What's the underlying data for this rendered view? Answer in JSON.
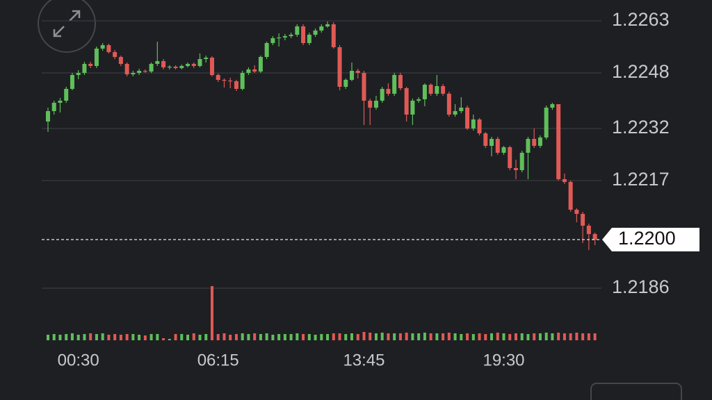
{
  "chart_data": {
    "type": "candlestick",
    "categories": [
      null,
      null,
      null,
      null,
      null,
      "00:30",
      null,
      null,
      null,
      null,
      null,
      null,
      null,
      null,
      null,
      null,
      null,
      null,
      null,
      null,
      null,
      null,
      null,
      null,
      null,
      null,
      null,
      null,
      "06:15",
      null,
      null,
      null,
      null,
      null,
      null,
      null,
      null,
      null,
      null,
      null,
      null,
      null,
      null,
      null,
      null,
      null,
      null,
      null,
      null,
      null,
      null,
      null,
      "13:45",
      null,
      null,
      null,
      null,
      null,
      null,
      null,
      null,
      null,
      null,
      null,
      null,
      null,
      null,
      null,
      null,
      null,
      null,
      null,
      null,
      null,
      null,
      "19:30",
      null,
      null,
      null,
      null,
      null,
      null,
      null,
      null,
      null,
      null,
      null,
      null,
      null,
      null,
      null
    ],
    "open": [
      1.2234,
      1.2237,
      1.22394,
      1.224,
      1.22434,
      1.22474,
      1.2248,
      1.22506,
      1.225,
      1.2255,
      1.2256,
      1.2254,
      1.22526,
      1.22506,
      1.22476,
      1.2248,
      1.22486,
      1.22484,
      1.22506,
      1.22514,
      1.22496,
      1.22498,
      1.22494,
      1.225,
      1.22506,
      1.225,
      1.2252,
      1.22524,
      1.22474,
      1.2246,
      1.22458,
      1.22456,
      1.22434,
      1.2248,
      1.2249,
      1.22484,
      1.22526,
      1.22566,
      1.2258,
      1.22582,
      1.22586,
      1.2259,
      1.22614,
      1.22566,
      1.2259,
      1.22602,
      1.22614,
      1.2262,
      1.22554,
      1.2244,
      1.2246,
      1.22486,
      1.2248,
      1.224,
      1.2238,
      1.224,
      1.22434,
      1.2242,
      1.22474,
      1.22436,
      1.2236,
      1.224,
      1.22404,
      1.22446,
      1.2242,
      1.22442,
      1.2242,
      1.2236,
      1.2237,
      1.2238,
      1.2232,
      1.22346,
      1.22306,
      1.2227,
      1.2229,
      1.2225,
      1.22266,
      1.22206,
      1.222,
      1.2225,
      1.2229,
      1.2227,
      1.22294,
      1.2238,
      1.2239,
      1.22174,
      1.22166,
      1.22086,
      1.22074,
      1.2204,
      1.22016
    ],
    "high": [
      1.2238,
      1.224,
      1.22408,
      1.2244,
      1.2248,
      1.22488,
      1.22512,
      1.22512,
      1.22556,
      1.22566,
      1.22564,
      1.22546,
      1.2253,
      1.2251,
      1.22486,
      1.22492,
      1.2249,
      1.2251,
      1.2257,
      1.2252,
      1.22502,
      1.22502,
      1.22504,
      1.2251,
      1.2251,
      1.22536,
      1.2253,
      1.22528,
      1.22478,
      1.22464,
      1.22466,
      1.2246,
      1.22486,
      1.22496,
      1.22502,
      1.2253,
      1.2257,
      1.22586,
      1.22594,
      1.22592,
      1.22596,
      1.2262,
      1.2262,
      1.22596,
      1.22608,
      1.2262,
      1.22628,
      1.22626,
      1.2256,
      1.22464,
      1.2251,
      1.22492,
      1.22486,
      1.22406,
      1.22414,
      1.2244,
      1.2245,
      1.2248,
      1.2248,
      1.2244,
      1.22406,
      1.2241,
      1.2245,
      1.2245,
      1.22474,
      1.22448,
      1.22426,
      1.2239,
      1.2241,
      1.22386,
      1.2236,
      1.2235,
      1.2231,
      1.22296,
      1.22296,
      1.2227,
      1.2227,
      1.2223,
      1.22256,
      1.22296,
      1.2232,
      1.223,
      1.22386,
      1.22394,
      1.2239,
      1.2219,
      1.2217,
      1.2209,
      1.2208,
      1.22046,
      1.2202
    ],
    "low": [
      1.2231,
      1.2236,
      1.22366,
      1.22394,
      1.2243,
      1.22462,
      1.22474,
      1.22494,
      1.22494,
      1.22544,
      1.22536,
      1.2252,
      1.225,
      1.2247,
      1.2247,
      1.22474,
      1.2248,
      1.2248,
      1.225,
      1.2249,
      1.2249,
      1.2249,
      1.2249,
      1.22496,
      1.22494,
      1.22496,
      1.2251,
      1.2247,
      1.22454,
      1.22438,
      1.22436,
      1.22428,
      1.2243,
      1.22474,
      1.2248,
      1.2248,
      1.2252,
      1.2256,
      1.22556,
      1.22574,
      1.2258,
      1.22584,
      1.2256,
      1.2256,
      1.22584,
      1.22596,
      1.2261,
      1.2255,
      1.2243,
      1.22434,
      1.22456,
      1.22464,
      1.2233,
      1.2233,
      1.22374,
      1.22394,
      1.22414,
      1.22414,
      1.2243,
      1.2234,
      1.2233,
      1.22394,
      1.22384,
      1.22414,
      1.22414,
      1.22414,
      1.22354,
      1.22354,
      1.22364,
      1.22316,
      1.22314,
      1.223,
      1.22264,
      1.2224,
      1.22244,
      1.22244,
      1.222,
      1.22174,
      1.22194,
      1.22174,
      1.22264,
      1.22264,
      1.22288,
      1.22374,
      1.2217,
      1.2216,
      1.2208,
      1.2205,
      1.2199,
      1.2197,
      1.21984
    ],
    "close": [
      1.2237,
      1.22394,
      1.224,
      1.22434,
      1.22474,
      1.2248,
      1.22506,
      1.225,
      1.2255,
      1.2256,
      1.2254,
      1.22526,
      1.22506,
      1.22476,
      1.2248,
      1.22486,
      1.22484,
      1.22506,
      1.22514,
      1.22496,
      1.22498,
      1.22494,
      1.225,
      1.22506,
      1.225,
      1.2252,
      1.22524,
      1.22474,
      1.2246,
      1.22458,
      1.22456,
      1.22434,
      1.2248,
      1.2249,
      1.22484,
      1.22526,
      1.22566,
      1.2258,
      1.22582,
      1.22586,
      1.2259,
      1.22614,
      1.22566,
      1.2259,
      1.22602,
      1.22614,
      1.2262,
      1.22554,
      1.2244,
      1.2246,
      1.22486,
      1.2248,
      1.224,
      1.2238,
      1.224,
      1.22434,
      1.2242,
      1.22474,
      1.22436,
      1.2236,
      1.224,
      1.22404,
      1.22446,
      1.2242,
      1.22442,
      1.2242,
      1.2236,
      1.2237,
      1.2238,
      1.2232,
      1.22346,
      1.22306,
      1.2227,
      1.2229,
      1.2225,
      1.22266,
      1.22206,
      1.222,
      1.2225,
      1.2229,
      1.2227,
      1.22294,
      1.2238,
      1.2239,
      1.22174,
      1.22166,
      1.22086,
      1.22074,
      1.2204,
      1.22016,
      1.22
    ],
    "volume": [
      8,
      9,
      8,
      9,
      10,
      8,
      9,
      10,
      9,
      10,
      8,
      9,
      8,
      9,
      9,
      8,
      7,
      9,
      9,
      3,
      2,
      9,
      9,
      8,
      10,
      8,
      9,
      78,
      9,
      10,
      8,
      9,
      10,
      9,
      10,
      9,
      10,
      8,
      9,
      9,
      9,
      10,
      9,
      9,
      8,
      9,
      9,
      10,
      10,
      9,
      10,
      9,
      12,
      11,
      10,
      11,
      10,
      10,
      10,
      11,
      10,
      10,
      11,
      10,
      10,
      10,
      11,
      10,
      9,
      10,
      9,
      10,
      9,
      10,
      11,
      10,
      9,
      10,
      10,
      9,
      10,
      10,
      11,
      10,
      11,
      10,
      10,
      11,
      10,
      10,
      10
    ],
    "up_color": "#5fbf5a",
    "down_color": "#e05a55",
    "ylim": [
      1.2179,
      1.2269
    ],
    "yticks": [
      1.2263,
      1.2248,
      1.2232,
      1.2217,
      1.2186
    ],
    "grid": true,
    "last_price": {
      "value": 1.22,
      "label": "1.2200"
    }
  }
}
